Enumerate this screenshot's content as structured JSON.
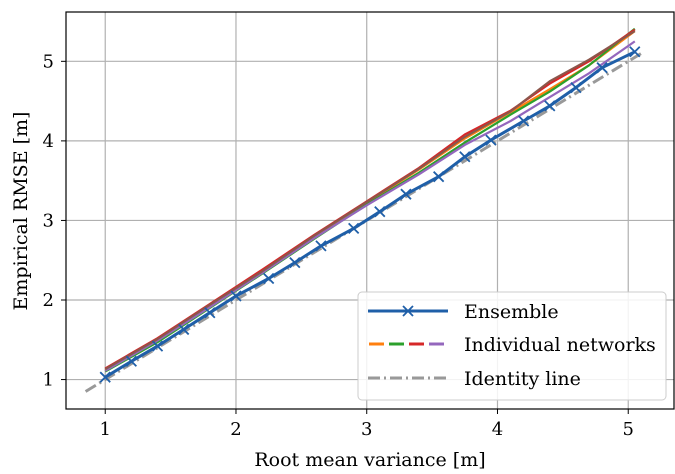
{
  "chart_data": {
    "type": "line",
    "title": "",
    "xlabel": "Root mean variance [m]",
    "ylabel": "Empirical RMSE [m]",
    "xlim": [
      0.7,
      5.35
    ],
    "ylim": [
      0.63,
      5.62
    ],
    "xticks": [
      1,
      2,
      3,
      4,
      5
    ],
    "yticks": [
      1,
      2,
      3,
      4,
      5
    ],
    "grid": true,
    "legend_position": "bottom-right",
    "legend": [
      {
        "label": "Ensemble"
      },
      {
        "label": "Individual networks"
      },
      {
        "label": "Identity line"
      }
    ],
    "series": [
      {
        "name": "Ensemble",
        "role": "ensemble",
        "color": "#1f5fa8",
        "marker": "x",
        "x": [
          1.0,
          1.2,
          1.4,
          1.6,
          1.8,
          2.0,
          2.25,
          2.45,
          2.65,
          2.9,
          3.1,
          3.3,
          3.55,
          3.75,
          3.95,
          4.2,
          4.4,
          4.6,
          4.8,
          5.05
        ],
        "y": [
          1.03,
          1.23,
          1.42,
          1.63,
          1.84,
          2.05,
          2.27,
          2.47,
          2.68,
          2.9,
          3.11,
          3.33,
          3.55,
          3.8,
          4.01,
          4.25,
          4.44,
          4.67,
          4.92,
          5.12
        ]
      },
      {
        "name": "",
        "role": "individual",
        "color": "#ff7f0e",
        "x": [
          1.0,
          1.4,
          1.8,
          2.2,
          2.6,
          3.0,
          3.4,
          3.75,
          4.1,
          4.4,
          4.7,
          5.05
        ],
        "y": [
          1.12,
          1.5,
          1.93,
          2.35,
          2.8,
          3.22,
          3.64,
          4.03,
          4.36,
          4.65,
          4.95,
          5.38
        ]
      },
      {
        "name": "",
        "role": "individual",
        "color": "#2ca02c",
        "x": [
          1.0,
          1.4,
          1.8,
          2.2,
          2.6,
          3.0,
          3.4,
          3.75,
          4.1,
          4.4,
          4.7,
          5.05
        ],
        "y": [
          1.1,
          1.47,
          1.9,
          2.33,
          2.77,
          3.2,
          3.6,
          3.98,
          4.33,
          4.62,
          4.95,
          5.41
        ]
      },
      {
        "name": "",
        "role": "individual",
        "color": "#d62728",
        "x": [
          1.0,
          1.4,
          1.8,
          2.2,
          2.6,
          3.0,
          3.4,
          3.75,
          4.1,
          4.4,
          4.7,
          5.05
        ],
        "y": [
          1.14,
          1.52,
          1.95,
          2.38,
          2.82,
          3.24,
          3.66,
          4.08,
          4.38,
          4.72,
          5.0,
          5.4
        ]
      },
      {
        "name": "",
        "role": "individual",
        "color": "#9467bd",
        "x": [
          1.0,
          1.4,
          1.8,
          2.2,
          2.6,
          3.0,
          3.4,
          3.75,
          4.1,
          4.4,
          4.7,
          5.05
        ],
        "y": [
          1.11,
          1.49,
          1.91,
          2.34,
          2.78,
          3.19,
          3.58,
          3.95,
          4.25,
          4.55,
          4.85,
          5.25
        ]
      },
      {
        "name": "",
        "role": "individual",
        "color": "#8c564b",
        "x": [
          1.0,
          1.4,
          1.8,
          2.2,
          2.6,
          3.0,
          3.4,
          3.75,
          4.1,
          4.4,
          4.7,
          5.05
        ],
        "y": [
          1.13,
          1.51,
          1.94,
          2.36,
          2.81,
          3.23,
          3.65,
          4.05,
          4.37,
          4.75,
          5.02,
          5.38
        ]
      },
      {
        "name": "Identity line",
        "role": "identity",
        "color": "#999999",
        "dash": "dashdot",
        "x": [
          0.85,
          5.1
        ],
        "y": [
          0.85,
          5.1
        ]
      }
    ]
  }
}
